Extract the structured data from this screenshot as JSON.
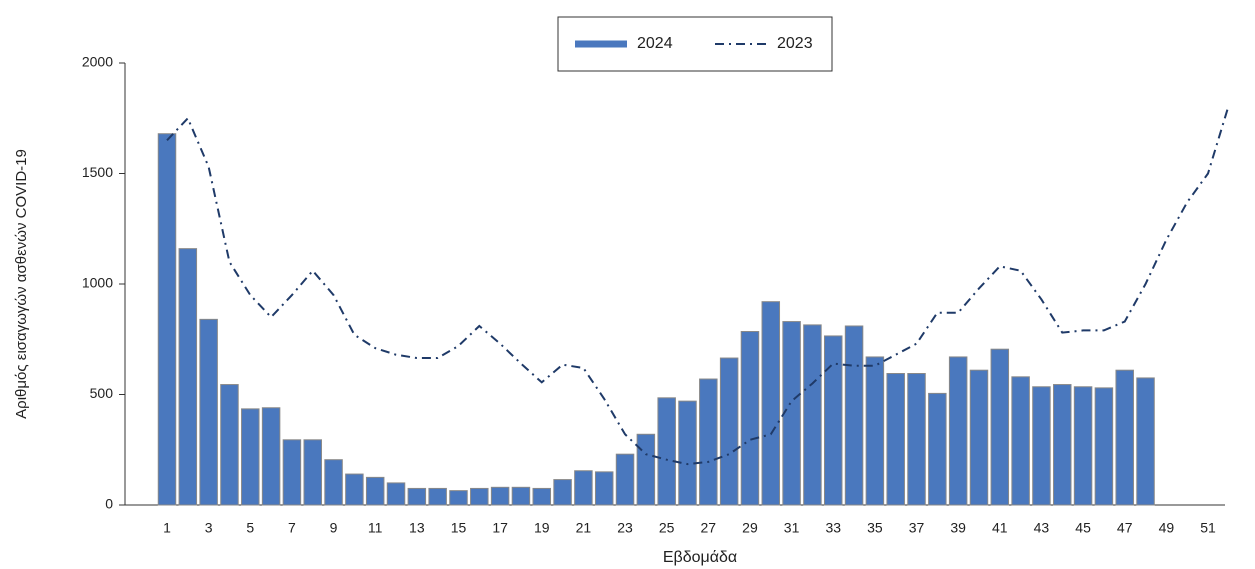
{
  "chart_data": {
    "type": "bar+line",
    "x_label": "Εβδομάδα",
    "y_label": "Αριθμός εισαγωγών ασθενών COVID-19",
    "categories": [
      "1",
      null,
      "3",
      null,
      "5",
      null,
      "7",
      null,
      "9",
      null,
      "11",
      null,
      "13",
      null,
      "15",
      null,
      "17",
      null,
      "19",
      null,
      "21",
      null,
      "23",
      null,
      "25",
      null,
      "27",
      null,
      "29",
      null,
      "31",
      null,
      "33",
      null,
      "35",
      null,
      "37",
      null,
      "39",
      null,
      "41",
      null,
      "43",
      null,
      "45",
      null,
      "47",
      null,
      "49",
      null,
      "51",
      null
    ],
    "series": [
      {
        "name": "2024",
        "type": "bar",
        "color": "#4a78be",
        "values": [
          1680,
          1160,
          840,
          545,
          435,
          440,
          295,
          295,
          205,
          140,
          125,
          100,
          75,
          75,
          65,
          75,
          80,
          80,
          75,
          115,
          155,
          150,
          230,
          320,
          485,
          470,
          570,
          665,
          785,
          920,
          830,
          815,
          765,
          810,
          670,
          595,
          595,
          505,
          670,
          610,
          705,
          580,
          535,
          545,
          535,
          530,
          610,
          575,
          null,
          null,
          null,
          null
        ]
      },
      {
        "name": "2023",
        "type": "line",
        "color": "#1f3a68",
        "values": [
          1650,
          1750,
          1530,
          1100,
          950,
          850,
          950,
          1060,
          950,
          770,
          710,
          680,
          665,
          665,
          720,
          810,
          730,
          640,
          555,
          635,
          620,
          480,
          320,
          230,
          205,
          185,
          195,
          230,
          295,
          320,
          470,
          550,
          640,
          630,
          630,
          680,
          730,
          870,
          870,
          980,
          1080,
          1060,
          930,
          780,
          790,
          790,
          830,
          1000,
          1200,
          1370,
          1500,
          1810
        ]
      }
    ],
    "ylim": [
      0,
      2000
    ],
    "yticks": [
      0,
      500,
      1000,
      1500,
      2000
    ]
  }
}
